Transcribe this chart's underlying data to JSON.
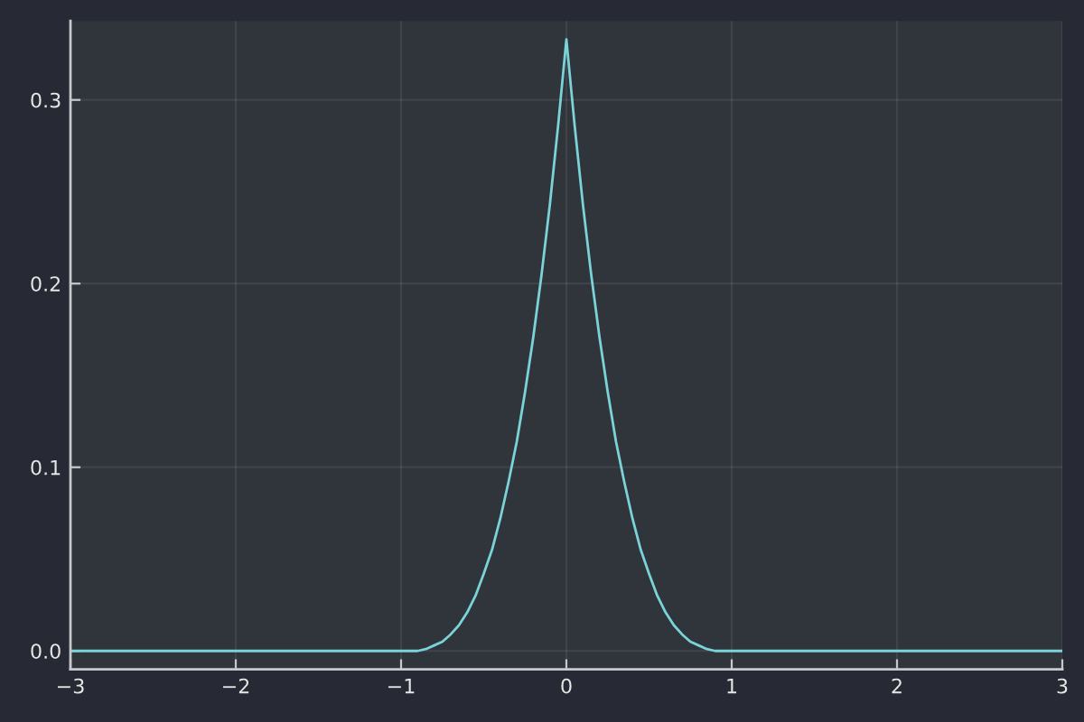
{
  "chart_data": {
    "type": "line",
    "x": [
      -3,
      -1,
      -0.95,
      -0.9,
      -0.85,
      -0.8,
      -0.75,
      -0.7,
      -0.65,
      -0.6,
      -0.55,
      -0.5,
      -0.45,
      -0.4,
      -0.35,
      -0.3,
      -0.25,
      -0.2,
      -0.15,
      -0.1,
      -0.05,
      0,
      0.05,
      0.1,
      0.15,
      0.2,
      0.25,
      0.3,
      0.35,
      0.4,
      0.45,
      0.5,
      0.55,
      0.6,
      0.65,
      0.7,
      0.75,
      0.8,
      0.85,
      0.9,
      0.95,
      1,
      3
    ],
    "series": [
      {
        "color": "#79d3d8",
        "values": [
          0,
          0,
          0.0,
          0.0,
          0.001,
          0.003,
          0.005,
          0.009,
          0.014,
          0.021,
          0.03,
          0.042,
          0.055,
          0.072,
          0.092,
          0.114,
          0.141,
          0.171,
          0.205,
          0.243,
          0.286,
          0.333,
          0.286,
          0.243,
          0.205,
          0.171,
          0.141,
          0.114,
          0.092,
          0.072,
          0.055,
          0.042,
          0.03,
          0.021,
          0.014,
          0.009,
          0.005,
          0.003,
          0.001,
          0.0,
          0.0,
          0,
          0
        ]
      }
    ],
    "xlim": [
      -3,
      3
    ],
    "ylim": [
      -0.01,
      0.343
    ],
    "xticks": [
      {
        "value": -3,
        "label": "−3"
      },
      {
        "value": -2,
        "label": "−2"
      },
      {
        "value": -1,
        "label": "−1"
      },
      0,
      1,
      2,
      3
    ],
    "yticks": [
      {
        "value": 0,
        "label": "0.0"
      },
      0.1,
      0.2,
      0.3
    ],
    "grid": true,
    "line_style": "solid"
  }
}
